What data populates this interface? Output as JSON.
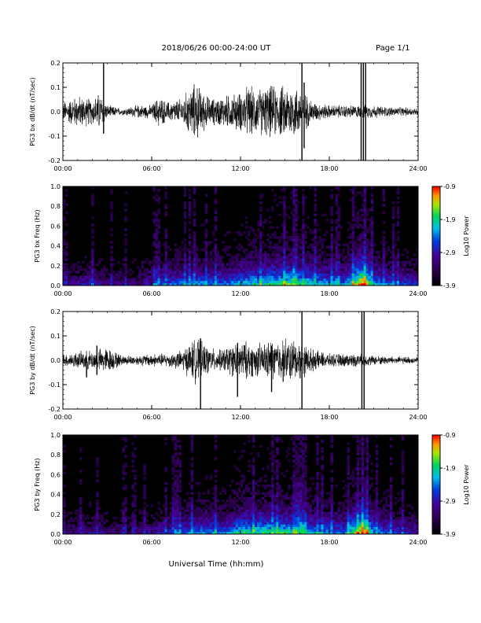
{
  "header": {
    "title": "2018/06/26  00:00-24:00 UT",
    "page": "Page 1/1"
  },
  "xlabel": "Universal Time (hh:mm)",
  "chart_data": [
    {
      "type": "line",
      "ylabel": "PG3 bx dB/dt (nT/sec)",
      "xlim": [
        0,
        24
      ],
      "ylim": [
        -0.2,
        0.2
      ],
      "xticks": [
        "00:00",
        "06:00",
        "12:00",
        "18:00",
        "24:00"
      ],
      "yticks": [
        "-0.2",
        "-0.1",
        "0.0",
        "0.1",
        "0.2"
      ],
      "activity": [
        {
          "t": 0.0,
          "amp": 0.03
        },
        {
          "t": 1.0,
          "amp": 0.05
        },
        {
          "t": 2.0,
          "amp": 0.04
        },
        {
          "t": 2.5,
          "amp": 0.06
        },
        {
          "t": 3.0,
          "amp": 0.02
        },
        {
          "t": 4.0,
          "amp": 0.01
        },
        {
          "t": 5.0,
          "amp": 0.02
        },
        {
          "t": 6.0,
          "amp": 0.02
        },
        {
          "t": 6.5,
          "amp": 0.05
        },
        {
          "t": 7.0,
          "amp": 0.03
        },
        {
          "t": 8.0,
          "amp": 0.04
        },
        {
          "t": 8.5,
          "amp": 0.07
        },
        {
          "t": 9.0,
          "amp": 0.09
        },
        {
          "t": 9.5,
          "amp": 0.06
        },
        {
          "t": 10.0,
          "amp": 0.04
        },
        {
          "t": 11.0,
          "amp": 0.05
        },
        {
          "t": 12.0,
          "amp": 0.06
        },
        {
          "t": 12.5,
          "amp": 0.08
        },
        {
          "t": 13.0,
          "amp": 0.07
        },
        {
          "t": 14.0,
          "amp": 0.08
        },
        {
          "t": 15.0,
          "amp": 0.08
        },
        {
          "t": 15.5,
          "amp": 0.09
        },
        {
          "t": 16.0,
          "amp": 0.07
        },
        {
          "t": 17.0,
          "amp": 0.03
        },
        {
          "t": 18.0,
          "amp": 0.02
        },
        {
          "t": 19.0,
          "amp": 0.02
        },
        {
          "t": 20.0,
          "amp": 0.02
        },
        {
          "t": 21.0,
          "amp": 0.02
        },
        {
          "t": 22.0,
          "amp": 0.015
        },
        {
          "t": 24.0,
          "amp": 0.012
        }
      ],
      "spikes": [
        {
          "t": 2.75,
          "max": 0.2,
          "min": -0.09
        },
        {
          "t": 16.15,
          "max": 0.2,
          "min": -0.2
        },
        {
          "t": 16.3,
          "max": 0.12,
          "min": -0.15
        },
        {
          "t": 20.15,
          "max": 0.2,
          "min": -0.2
        },
        {
          "t": 20.3,
          "max": 0.2,
          "min": -0.2
        },
        {
          "t": 20.45,
          "max": 0.2,
          "min": -0.2
        }
      ]
    },
    {
      "type": "heatmap",
      "ylabel": "PG3 bx Freq (Hz)",
      "xlim": [
        0,
        24
      ],
      "ylim": [
        0,
        1.0
      ],
      "xticks": [
        "00:00",
        "06:00",
        "12:00",
        "18:00",
        "24:00"
      ],
      "yticks": [
        "0.0",
        "0.2",
        "0.4",
        "0.6",
        "0.8",
        "1.0"
      ],
      "colorbar": {
        "label": "Log10 Power",
        "min": -3.9,
        "max": -0.9,
        "ticks": [
          "-3.9",
          "-2.9",
          "-1.9",
          "-0.9"
        ]
      },
      "intensity": [
        {
          "t": 0.0,
          "v": 0.25
        },
        {
          "t": 2.0,
          "v": 0.35
        },
        {
          "t": 3.0,
          "v": 0.25
        },
        {
          "t": 5.0,
          "v": 0.25
        },
        {
          "t": 6.5,
          "v": 0.4
        },
        {
          "t": 9.0,
          "v": 0.5
        },
        {
          "t": 11.0,
          "v": 0.45
        },
        {
          "t": 12.5,
          "v": 0.55
        },
        {
          "t": 14.0,
          "v": 0.6
        },
        {
          "t": 15.5,
          "v": 0.65
        },
        {
          "t": 17.0,
          "v": 0.55
        },
        {
          "t": 19.0,
          "v": 0.45
        },
        {
          "t": 20.3,
          "v": 0.9
        },
        {
          "t": 21.0,
          "v": 0.5
        },
        {
          "t": 24.0,
          "v": 0.35
        }
      ]
    },
    {
      "type": "line",
      "ylabel": "PG3 by dB/dt (nT/sec)",
      "xlim": [
        0,
        24
      ],
      "ylim": [
        -0.2,
        0.2
      ],
      "xticks": [
        "00:00",
        "06:00",
        "12:00",
        "18:00",
        "24:00"
      ],
      "yticks": [
        "-0.2",
        "-0.1",
        "0.0",
        "0.1",
        "0.2"
      ],
      "activity": [
        {
          "t": 0.0,
          "amp": 0.02
        },
        {
          "t": 1.0,
          "amp": 0.025
        },
        {
          "t": 2.0,
          "amp": 0.03
        },
        {
          "t": 3.0,
          "amp": 0.04
        },
        {
          "t": 4.0,
          "amp": 0.015
        },
        {
          "t": 5.0,
          "amp": 0.015
        },
        {
          "t": 6.0,
          "amp": 0.02
        },
        {
          "t": 7.0,
          "amp": 0.02
        },
        {
          "t": 8.0,
          "amp": 0.03
        },
        {
          "t": 9.0,
          "amp": 0.07
        },
        {
          "t": 9.5,
          "amp": 0.05
        },
        {
          "t": 10.5,
          "amp": 0.03
        },
        {
          "t": 11.5,
          "amp": 0.05
        },
        {
          "t": 12.0,
          "amp": 0.06
        },
        {
          "t": 13.0,
          "amp": 0.05
        },
        {
          "t": 14.0,
          "amp": 0.06
        },
        {
          "t": 15.0,
          "amp": 0.07
        },
        {
          "t": 16.0,
          "amp": 0.06
        },
        {
          "t": 17.0,
          "amp": 0.03
        },
        {
          "t": 18.0,
          "amp": 0.02
        },
        {
          "t": 20.0,
          "amp": 0.02
        },
        {
          "t": 21.0,
          "amp": 0.015
        },
        {
          "t": 22.5,
          "amp": 0.012
        },
        {
          "t": 24.0,
          "amp": 0.01
        }
      ],
      "spikes": [
        {
          "t": 1.6,
          "max": 0.01,
          "min": -0.07
        },
        {
          "t": 2.3,
          "max": 0.06,
          "min": -0.06
        },
        {
          "t": 9.3,
          "max": 0.09,
          "min": -0.2
        },
        {
          "t": 11.8,
          "max": 0.07,
          "min": -0.15
        },
        {
          "t": 14.1,
          "max": 0.06,
          "min": -0.13
        },
        {
          "t": 16.15,
          "max": 0.2,
          "min": -0.2
        },
        {
          "t": 20.2,
          "max": 0.2,
          "min": -0.2
        },
        {
          "t": 20.35,
          "max": 0.2,
          "min": -0.2
        }
      ]
    },
    {
      "type": "heatmap",
      "ylabel": "PG3 by Freq (Hz)",
      "xlim": [
        0,
        24
      ],
      "ylim": [
        0,
        1.0
      ],
      "xticks": [
        "00:00",
        "06:00",
        "12:00",
        "18:00",
        "24:00"
      ],
      "yticks": [
        "0.0",
        "0.2",
        "0.4",
        "0.6",
        "0.8",
        "1.0"
      ],
      "colorbar": {
        "label": "Log10 Power",
        "min": -3.9,
        "max": -0.9,
        "ticks": [
          "-3.9",
          "-2.9",
          "-1.9",
          "-0.9"
        ]
      },
      "intensity": [
        {
          "t": 0.0,
          "v": 0.25
        },
        {
          "t": 2.0,
          "v": 0.3
        },
        {
          "t": 3.0,
          "v": 0.25
        },
        {
          "t": 5.0,
          "v": 0.25
        },
        {
          "t": 7.0,
          "v": 0.35
        },
        {
          "t": 9.0,
          "v": 0.5
        },
        {
          "t": 11.0,
          "v": 0.45
        },
        {
          "t": 12.0,
          "v": 0.6
        },
        {
          "t": 14.0,
          "v": 0.6
        },
        {
          "t": 15.5,
          "v": 0.6
        },
        {
          "t": 17.0,
          "v": 0.5
        },
        {
          "t": 19.0,
          "v": 0.45
        },
        {
          "t": 20.3,
          "v": 0.85
        },
        {
          "t": 21.0,
          "v": 0.5
        },
        {
          "t": 24.0,
          "v": 0.3
        }
      ]
    }
  ]
}
